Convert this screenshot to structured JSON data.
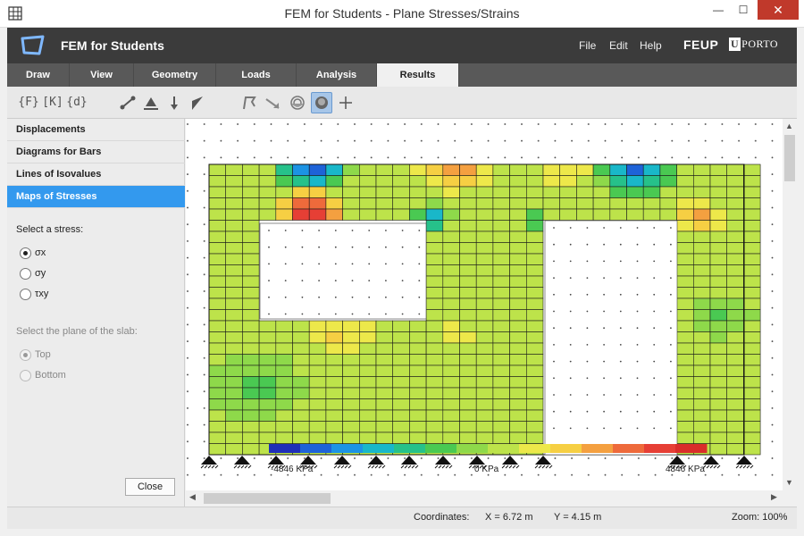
{
  "window": {
    "title": "FEM for Students - Plane Stresses/Strains",
    "minimize": "—",
    "maximize": "☐",
    "close": "✕"
  },
  "header": {
    "app_name": "FEM for Students",
    "menu": {
      "file": "File",
      "edit": "Edit",
      "help": "Help"
    },
    "feup": "FEUP",
    "uporto_u": "U",
    "uporto_text": "PORTO"
  },
  "tabs": [
    {
      "label": "Draw"
    },
    {
      "label": "View"
    },
    {
      "label": "Geometry"
    },
    {
      "label": "Loads"
    },
    {
      "label": "Analysis"
    },
    {
      "label": "Results"
    }
  ],
  "active_tab": "Results",
  "toolbar": {
    "force_vector": "{F}",
    "stiffness_matrix": "[K]",
    "displacement_vector": "{d}"
  },
  "sidebar": {
    "items": [
      {
        "label": "Displacements"
      },
      {
        "label": "Diagrams for Bars"
      },
      {
        "label": "Lines of Isovalues"
      },
      {
        "label": "Maps of Stresses"
      }
    ],
    "stress_prompt": "Select a stress:",
    "stresses": [
      {
        "label": "σx",
        "checked": true
      },
      {
        "label": "σy",
        "checked": false
      },
      {
        "label": "τxy",
        "checked": false
      }
    ],
    "plane_prompt": "Select the plane of the slab:",
    "planes": [
      {
        "label": "Top",
        "checked": true
      },
      {
        "label": "Bottom",
        "checked": false
      }
    ],
    "close_label": "Close"
  },
  "legend": {
    "min_label": "-4846 KPa",
    "zero_label": "0 KPa",
    "max_label": "4846 KPa",
    "colors": [
      "#1f2fb8",
      "#1e63d8",
      "#1c93e4",
      "#19b7c9",
      "#26c18a",
      "#4ac952",
      "#8ed94a",
      "#bde34a",
      "#ede84a",
      "#f6cf43",
      "#f4a040",
      "#ee6a3b",
      "#e63f35",
      "#d92d2a"
    ]
  },
  "status": {
    "coordinates_label": "Coordinates:",
    "x": "X = 6.72 m",
    "y": "Y = 4.15 m",
    "zoom": "Zoom: 100%"
  }
}
